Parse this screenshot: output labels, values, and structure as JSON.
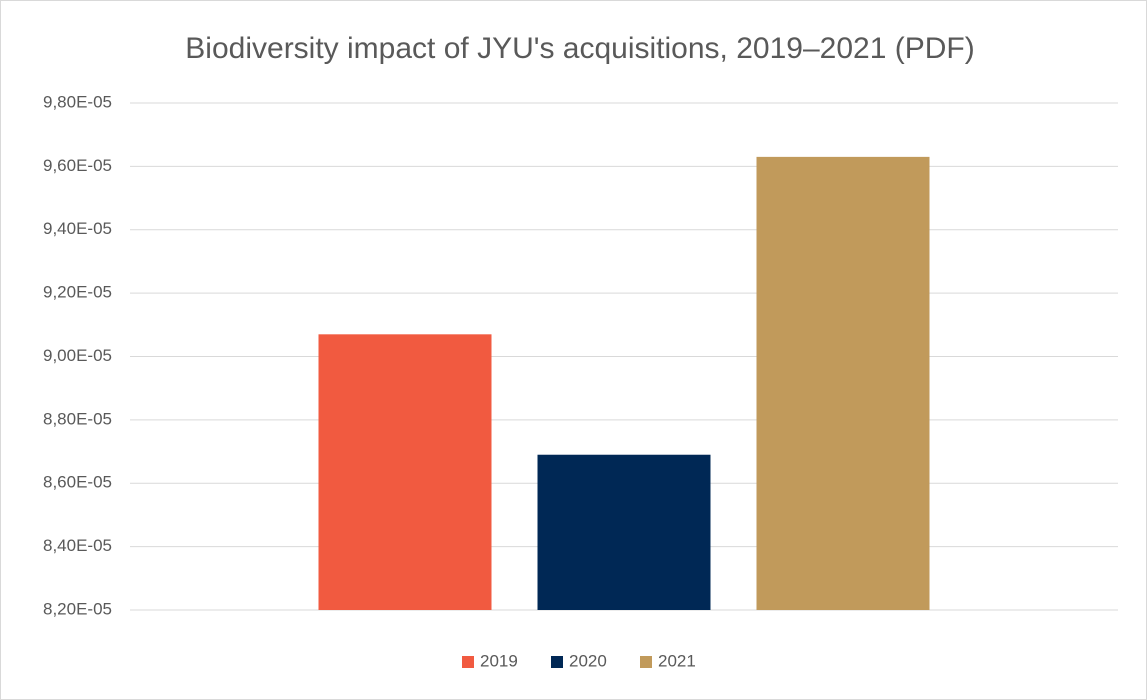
{
  "chart_data": {
    "type": "bar",
    "title": "Biodiversity impact of JYU's acquisitions, 2019–2021 (PDF)",
    "categories": [
      null
    ],
    "series": [
      {
        "name": "2019",
        "color": "#f15a40",
        "values": [
          9.07e-05
        ]
      },
      {
        "name": "2020",
        "color": "#002855",
        "values": [
          8.69e-05
        ]
      },
      {
        "name": "2021",
        "color": "#c19a5b",
        "values": [
          9.63e-05
        ]
      }
    ],
    "ylim": [
      8.2e-05,
      9.8e-05
    ],
    "yticks": [
      {
        "value": 8.2e-05,
        "label": "8,20E-05"
      },
      {
        "value": 8.4e-05,
        "label": "8,40E-05"
      },
      {
        "value": 8.6e-05,
        "label": "8,60E-05"
      },
      {
        "value": 8.8e-05,
        "label": "8,80E-05"
      },
      {
        "value": 9e-05,
        "label": "9,00E-05"
      },
      {
        "value": 9.2e-05,
        "label": "9,20E-05"
      },
      {
        "value": 9.4e-05,
        "label": "9,40E-05"
      },
      {
        "value": 9.6e-05,
        "label": "9,60E-05"
      },
      {
        "value": 9.8e-05,
        "label": "9,80E-05"
      }
    ],
    "grid": true,
    "legend": "bottom"
  }
}
